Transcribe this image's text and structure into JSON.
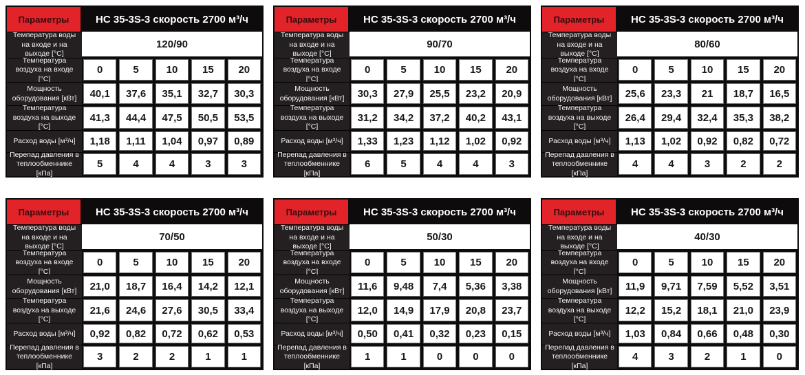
{
  "page": {
    "background": "#ffffff"
  },
  "table_template": {
    "params_label": "Параметры",
    "title": "НС 35-3S-3 скорость 2700 м³/ч",
    "row_labels": {
      "water": "Температура воды на входе и на выходе [°C]",
      "air_in": "Температура воздуха на входе [°C]",
      "power": "Мощность оборудования [кВт]",
      "air_out": "Температура воздуха на выходе [°C]",
      "flow": "Расход воды [м³/ч]",
      "pressure": "Перепад давления в теплообменнике [кПа]"
    },
    "colors": {
      "accent_red": "#e2242a",
      "header_black": "#0d0b0c",
      "label_bg": "#242021",
      "cell_border": "#767676"
    }
  },
  "tables": [
    {
      "water_temp": "120/90",
      "air_in": [
        "0",
        "5",
        "10",
        "15",
        "20"
      ],
      "power": [
        "40,1",
        "37,6",
        "35,1",
        "32,7",
        "30,3"
      ],
      "air_out": [
        "41,3",
        "44,4",
        "47,5",
        "50,5",
        "53,5"
      ],
      "flow": [
        "1,18",
        "1,11",
        "1,04",
        "0,97",
        "0,89"
      ],
      "pressure": [
        "5",
        "4",
        "4",
        "3",
        "3"
      ]
    },
    {
      "water_temp": "90/70",
      "air_in": [
        "0",
        "5",
        "10",
        "15",
        "20"
      ],
      "power": [
        "30,3",
        "27,9",
        "25,5",
        "23,2",
        "20,9"
      ],
      "air_out": [
        "31,2",
        "34,2",
        "37,2",
        "40,2",
        "43,1"
      ],
      "flow": [
        "1,33",
        "1,23",
        "1,12",
        "1,02",
        "0,92"
      ],
      "pressure": [
        "6",
        "5",
        "4",
        "4",
        "3"
      ]
    },
    {
      "water_temp": "80/60",
      "air_in": [
        "0",
        "5",
        "10",
        "15",
        "20"
      ],
      "power": [
        "25,6",
        "23,3",
        "21",
        "18,7",
        "16,5"
      ],
      "air_out": [
        "26,4",
        "29,4",
        "32,4",
        "35,3",
        "38,2"
      ],
      "flow": [
        "1,13",
        "1,02",
        "0,92",
        "0,82",
        "0,72"
      ],
      "pressure": [
        "4",
        "4",
        "3",
        "2",
        "2"
      ]
    },
    {
      "water_temp": "70/50",
      "air_in": [
        "0",
        "5",
        "10",
        "15",
        "20"
      ],
      "power": [
        "21,0",
        "18,7",
        "16,4",
        "14,2",
        "12,1"
      ],
      "air_out": [
        "21,6",
        "24,6",
        "27,6",
        "30,5",
        "33,4"
      ],
      "flow": [
        "0,92",
        "0,82",
        "0,72",
        "0,62",
        "0,53"
      ],
      "pressure": [
        "3",
        "2",
        "2",
        "1",
        "1"
      ]
    },
    {
      "water_temp": "50/30",
      "air_in": [
        "0",
        "5",
        "10",
        "15",
        "20"
      ],
      "power": [
        "11,6",
        "9,48",
        "7,4",
        "5,36",
        "3,38"
      ],
      "air_out": [
        "12,0",
        "14,9",
        "17,9",
        "20,8",
        "23,7"
      ],
      "flow": [
        "0,50",
        "0,41",
        "0,32",
        "0,23",
        "0,15"
      ],
      "pressure": [
        "1",
        "1",
        "0",
        "0",
        "0"
      ]
    },
    {
      "water_temp": "40/30",
      "air_in": [
        "0",
        "5",
        "10",
        "15",
        "20"
      ],
      "power": [
        "11,9",
        "9,71",
        "7,59",
        "5,52",
        "3,51"
      ],
      "air_out": [
        "12,2",
        "15,2",
        "18,1",
        "21,0",
        "23,9"
      ],
      "flow": [
        "1,03",
        "0,84",
        "0,66",
        "0,48",
        "0,30"
      ],
      "pressure": [
        "4",
        "3",
        "2",
        "1",
        "0"
      ]
    }
  ]
}
